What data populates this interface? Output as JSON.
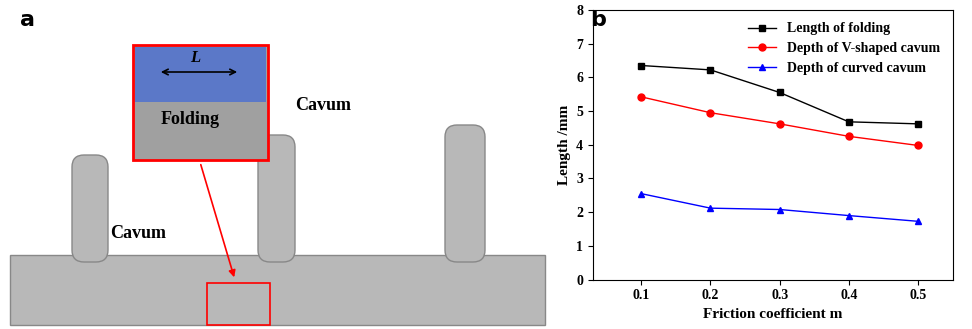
{
  "panel_labels": [
    "a",
    "b"
  ],
  "photo": {
    "cavity_labels": [
      "Cavum",
      "Cavum"
    ],
    "inset_label": "Folding",
    "length_label": "L"
  },
  "chart_data": {
    "type": "line",
    "x": [
      0.1,
      0.2,
      0.3,
      0.4,
      0.5
    ],
    "xlabel": "Friction coefficient m",
    "ylabel": "Length /mm",
    "xlim": [
      0.03,
      0.55
    ],
    "ylim": [
      0,
      8
    ],
    "xticks": [
      0.1,
      0.2,
      0.3,
      0.4,
      0.5
    ],
    "yticks": [
      0,
      1,
      2,
      3,
      4,
      5,
      6,
      7,
      8
    ],
    "legend": "upper right",
    "grid": false,
    "series": [
      {
        "name": "Length of folding",
        "color": "#000000",
        "marker": "square",
        "values": [
          6.35,
          6.22,
          5.55,
          4.68,
          4.62
        ]
      },
      {
        "name": "Depth of V-shaped cavum",
        "color": "#ff0000",
        "marker": "circle",
        "values": [
          5.42,
          4.95,
          4.62,
          4.25,
          3.98
        ]
      },
      {
        "name": "Depth of curved cavum",
        "color": "#0000ff",
        "marker": "triangle",
        "values": [
          2.55,
          2.12,
          2.08,
          1.9,
          1.73
        ]
      }
    ]
  }
}
